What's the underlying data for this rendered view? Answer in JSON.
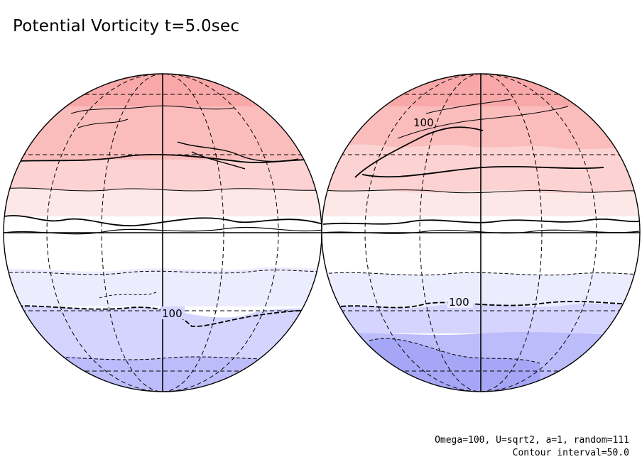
{
  "title": "Potential Vorticity t=5.0sec",
  "footnote": {
    "params": "Omega=100, U=sqrt2, a=1, random=111",
    "contour_interval": "Contour interval=50.0"
  },
  "colors": {
    "positive_levels": [
      "#fde8e8",
      "#fcd2d2",
      "#fbbcbc",
      "#f8a8a8"
    ],
    "negative_levels": [
      "#ececff",
      "#d4d4ff",
      "#bcbcfb",
      "#a6a6f6"
    ],
    "zero_band": "#ffffff"
  },
  "contour_labels": {
    "left_negative": "100",
    "right_negative": "100",
    "right_positive": "100"
  }
}
